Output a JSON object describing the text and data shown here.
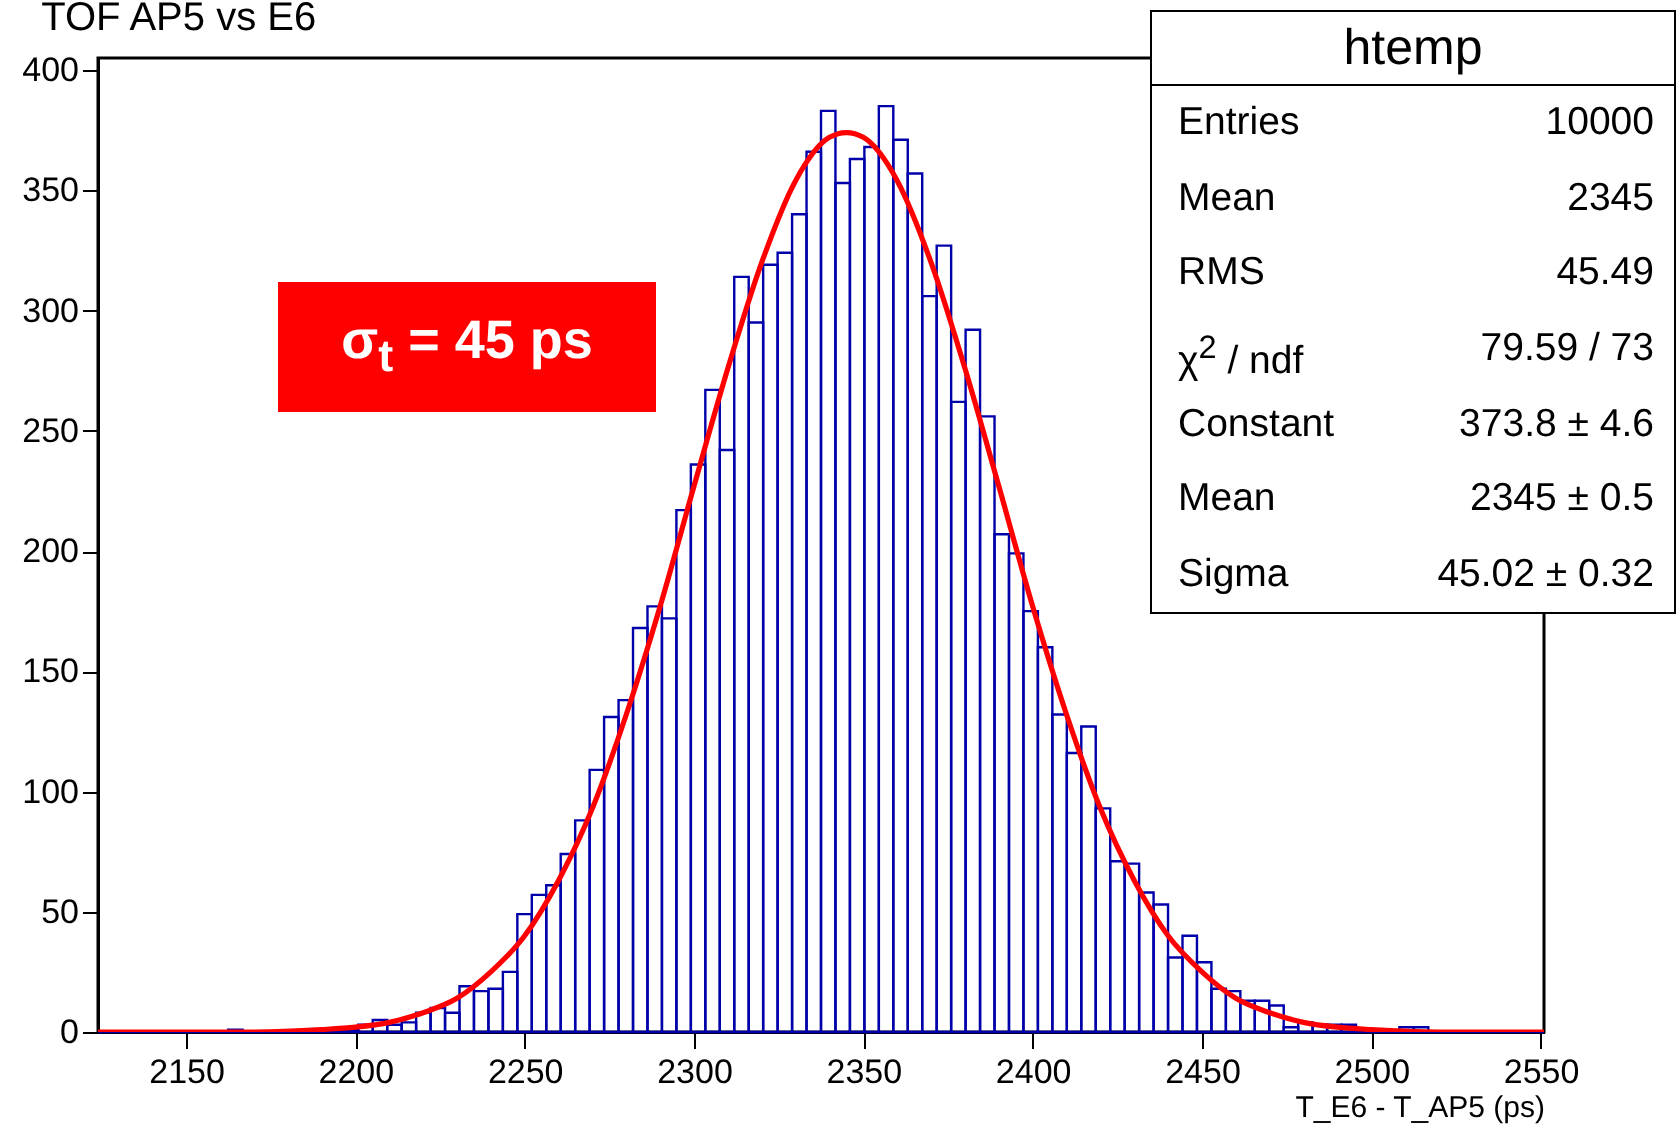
{
  "chart_data": {
    "type": "histogram",
    "title": "TOF AP5 vs E6",
    "xlabel": "T_E6 - T_AP5 (ps)",
    "bins": [
      2124,
      2128.27,
      2132.54,
      2136.81,
      2141.08,
      2145.35,
      2149.62,
      2153.89,
      2158.16,
      2162.43,
      2166.7,
      2170.97,
      2175.24,
      2179.51,
      2183.78,
      2188.05,
      2192.32,
      2196.59,
      2200.86,
      2205.13,
      2209.4,
      2213.67,
      2217.94,
      2222.21,
      2226.48,
      2230.75,
      2235.02,
      2239.29,
      2243.56,
      2247.83,
      2252.1,
      2256.37,
      2260.64,
      2264.91,
      2269.18,
      2273.45,
      2277.72,
      2281.99,
      2286.26,
      2290.53,
      2294.8,
      2299.07,
      2303.34,
      2307.61,
      2311.88,
      2316.15,
      2320.42,
      2324.69,
      2328.96,
      2333.23,
      2337.5,
      2341.77,
      2346.04,
      2350.31,
      2354.58,
      2358.85,
      2363.12,
      2367.39,
      2371.66,
      2375.93,
      2380.2,
      2384.47,
      2388.74,
      2393.01,
      2397.28,
      2401.55,
      2405.82,
      2410.09,
      2414.36,
      2418.63,
      2422.9,
      2427.17,
      2431.44,
      2435.71,
      2439.98,
      2444.25,
      2448.52,
      2452.79,
      2457.06,
      2461.33,
      2465.6,
      2469.87,
      2474.14,
      2478.41,
      2482.68,
      2486.95,
      2491.22,
      2495.49,
      2499.76,
      2504.03,
      2508.3,
      2512.57,
      2516.84,
      2521.11,
      2525.38,
      2529.65,
      2533.92,
      2538.19,
      2542.46,
      2546.73,
      2551
    ],
    "series": [
      {
        "color": "#0000aa",
        "values": [
          0,
          0,
          0,
          0,
          0,
          0,
          0,
          0,
          0,
          1,
          0,
          0,
          0,
          0,
          0,
          0,
          1,
          1,
          3,
          5,
          3,
          4,
          8,
          10,
          8,
          19,
          17,
          18,
          25,
          49,
          57,
          61,
          74,
          88,
          109,
          131,
          138,
          168,
          177,
          172,
          217,
          236,
          267,
          242,
          314,
          295,
          319,
          324,
          340,
          366,
          383,
          353,
          363,
          368,
          385,
          371,
          357,
          306,
          327,
          262,
          292,
          256,
          207,
          199,
          175,
          160,
          132,
          116,
          127,
          93,
          71,
          70,
          58,
          53,
          31,
          40,
          29,
          18,
          17,
          13,
          13,
          11,
          2,
          4,
          3,
          3,
          3,
          1,
          1,
          0,
          2,
          2,
          0,
          0,
          0,
          0,
          0,
          0,
          0,
          0
        ]
      },
      {
        "type": "line",
        "color": "#ff0000",
        "x": [
          2124,
          2150,
          2170,
          2190,
          2200,
          2210,
          2220,
          2230,
          2240,
          2250,
          2260,
          2270,
          2280,
          2290,
          2300,
          2310,
          2320,
          2330,
          2340,
          2345,
          2350,
          2360,
          2370,
          2380,
          2390,
          2400,
          2410,
          2420,
          2430,
          2440,
          2450,
          2460,
          2470,
          2480,
          2490,
          2500,
          2520,
          2551
        ],
        "values": [
          0,
          0,
          0,
          1,
          2,
          4,
          8,
          14,
          25,
          40,
          63,
          93,
          132,
          177,
          227,
          276,
          320,
          354,
          372,
          374,
          372,
          354,
          320,
          276,
          227,
          177,
          132,
          93,
          63,
          40,
          25,
          14,
          8,
          4,
          2,
          1,
          0,
          0
        ]
      }
    ],
    "xlim": [
      2124,
      2551
    ],
    "ylim": [
      0,
      405
    ],
    "xticks": [
      2150,
      2200,
      2250,
      2300,
      2350,
      2400,
      2450,
      2500,
      2550
    ],
    "yticks": [
      0,
      50,
      100,
      150,
      200,
      250,
      300,
      350,
      400
    ],
    "annotations": [
      "htemp",
      "Entries",
      "10000",
      "Mean",
      "2345",
      "RMS",
      "45.49",
      "χ$^{2}$ / ndf",
      "79.59 / 73",
      "Constant",
      "373.8 ± 4.6",
      "Mean",
      "2345 ± 0.5",
      "Sigma",
      "45.02 ± 0.32",
      "σ$_{t}$ = 45 ps"
    ]
  }
}
